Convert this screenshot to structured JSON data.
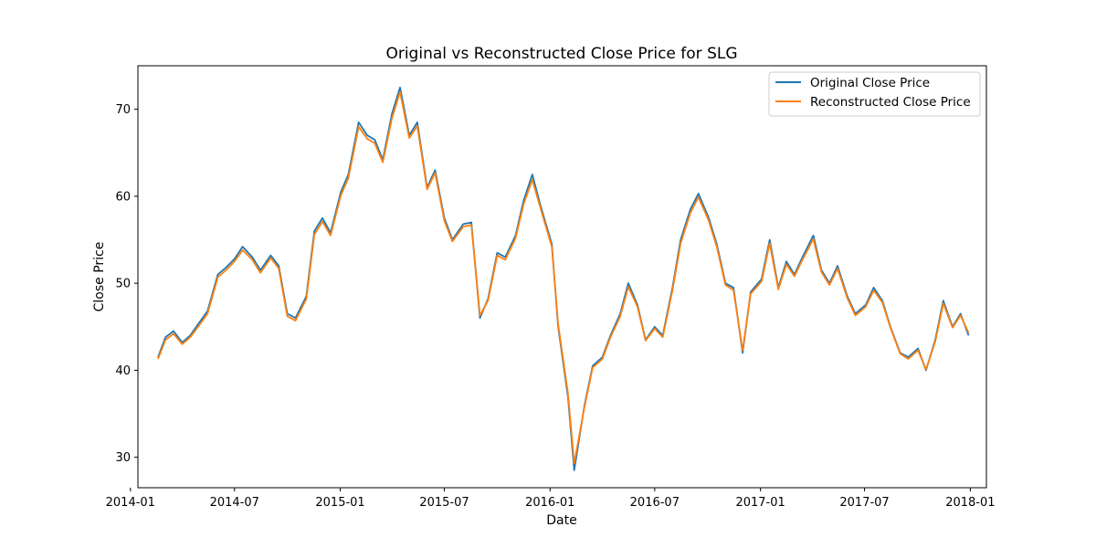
{
  "chart_data": {
    "type": "line",
    "title": "Original vs Reconstructed Close Price for SLG",
    "xlabel": "Date",
    "ylabel": "Close Price",
    "ylim": [
      26.5,
      75.0
    ],
    "xlim": [
      "2014-01-14",
      "2018-01-29"
    ],
    "x_ticks": [
      "2014-01",
      "2014-07",
      "2015-01",
      "2015-07",
      "2016-01",
      "2016-07",
      "2017-01",
      "2017-07",
      "2018-01"
    ],
    "y_ticks": [
      30,
      40,
      50,
      60,
      70
    ],
    "grid": false,
    "legend_position": "top-right",
    "colors": {
      "original": "#1f77b4",
      "reconstructed": "#ff7f0e"
    },
    "x": [
      "2014-02-18",
      "2014-03-03",
      "2014-03-17",
      "2014-04-01",
      "2014-04-15",
      "2014-05-01",
      "2014-05-15",
      "2014-06-02",
      "2014-06-16",
      "2014-07-01",
      "2014-07-15",
      "2014-08-01",
      "2014-08-15",
      "2014-09-02",
      "2014-09-16",
      "2014-10-01",
      "2014-10-15",
      "2014-11-03",
      "2014-11-17",
      "2014-12-01",
      "2014-12-15",
      "2015-01-02",
      "2015-01-15",
      "2015-02-02",
      "2015-02-17",
      "2015-03-02",
      "2015-03-16",
      "2015-04-01",
      "2015-04-15",
      "2015-05-01",
      "2015-05-15",
      "2015-06-01",
      "2015-06-15",
      "2015-07-01",
      "2015-07-15",
      "2015-08-03",
      "2015-08-17",
      "2015-09-01",
      "2015-09-15",
      "2015-10-01",
      "2015-10-15",
      "2015-11-02",
      "2015-11-16",
      "2015-12-01",
      "2015-12-15",
      "2016-01-04",
      "2016-01-15",
      "2016-02-01",
      "2016-02-12",
      "2016-03-01",
      "2016-03-15",
      "2016-04-01",
      "2016-04-15",
      "2016-05-02",
      "2016-05-16",
      "2016-06-01",
      "2016-06-15",
      "2016-07-01",
      "2016-07-15",
      "2016-08-01",
      "2016-08-15",
      "2016-09-01",
      "2016-09-15",
      "2016-10-03",
      "2016-10-17",
      "2016-11-01",
      "2016-11-15",
      "2016-12-01",
      "2016-12-15",
      "2017-01-03",
      "2017-01-17",
      "2017-02-01",
      "2017-02-15",
      "2017-03-01",
      "2017-03-15",
      "2017-04-03",
      "2017-04-17",
      "2017-05-01",
      "2017-05-15",
      "2017-06-01",
      "2017-06-15",
      "2017-07-03",
      "2017-07-17",
      "2017-08-01",
      "2017-08-15",
      "2017-09-01",
      "2017-09-15",
      "2017-10-02",
      "2017-10-16",
      "2017-11-01",
      "2017-11-15",
      "2017-12-01",
      "2017-12-15",
      "2017-12-29"
    ],
    "series": [
      {
        "name": "Original Close Price",
        "values": [
          41.5,
          43.8,
          44.5,
          43.2,
          44.0,
          45.5,
          46.8,
          51.0,
          51.8,
          52.8,
          54.2,
          53.0,
          51.5,
          53.2,
          52.0,
          46.5,
          46.0,
          48.5,
          56.0,
          57.5,
          55.8,
          60.5,
          62.5,
          68.5,
          67.0,
          66.5,
          64.2,
          69.5,
          72.5,
          67.0,
          68.5,
          61.0,
          63.0,
          57.5,
          55.0,
          56.8,
          57.0,
          46.0,
          48.2,
          53.5,
          53.0,
          55.5,
          59.5,
          62.5,
          59.0,
          54.5,
          45.0,
          37.0,
          28.5,
          36.0,
          40.5,
          41.5,
          44.0,
          46.5,
          50.0,
          47.5,
          43.5,
          45.0,
          44.0,
          49.5,
          55.0,
          58.5,
          60.3,
          57.5,
          54.5,
          50.0,
          49.5,
          42.0,
          49.0,
          50.5,
          55.0,
          49.5,
          52.5,
          51.0,
          53.0,
          55.5,
          51.5,
          50.0,
          52.0,
          48.5,
          46.5,
          47.5,
          49.5,
          48.0,
          45.0,
          42.0,
          41.5,
          42.5,
          40.0,
          43.5,
          48.0,
          45.0,
          46.5,
          44.0
        ]
      },
      {
        "name": "Reconstructed Close Price",
        "values": [
          41.3,
          43.5,
          44.2,
          43.0,
          43.8,
          45.2,
          46.5,
          50.7,
          51.5,
          52.5,
          53.8,
          52.7,
          51.2,
          52.9,
          51.7,
          46.2,
          45.7,
          48.2,
          55.6,
          57.1,
          55.5,
          60.1,
          62.1,
          68.0,
          66.6,
          66.1,
          63.9,
          69.0,
          72.0,
          66.7,
          68.1,
          60.8,
          62.7,
          57.2,
          54.8,
          56.5,
          56.7,
          46.3,
          48.0,
          53.2,
          52.7,
          55.2,
          59.1,
          61.9,
          58.7,
          54.2,
          45.3,
          37.4,
          29.3,
          35.8,
          40.3,
          41.3,
          43.8,
          46.2,
          49.6,
          47.3,
          43.4,
          44.8,
          43.8,
          49.2,
          54.6,
          58.1,
          59.9,
          57.2,
          54.2,
          49.8,
          49.2,
          42.3,
          48.8,
          50.2,
          54.6,
          49.3,
          52.2,
          50.8,
          52.7,
          55.1,
          51.3,
          49.8,
          51.7,
          48.3,
          46.3,
          47.3,
          49.2,
          47.8,
          44.9,
          41.9,
          41.3,
          42.3,
          40.1,
          43.3,
          47.7,
          44.9,
          46.3,
          44.3
        ]
      }
    ]
  }
}
